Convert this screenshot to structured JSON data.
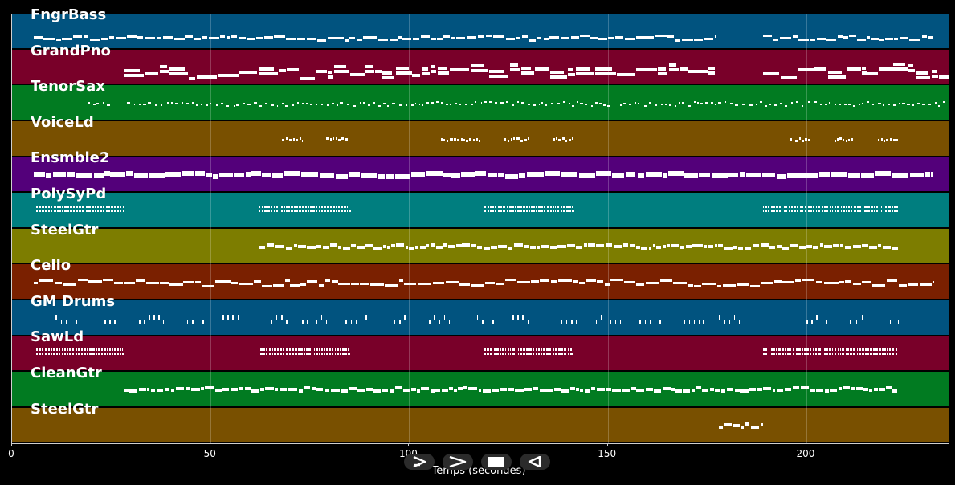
{
  "colors": {
    "background": "#000000",
    "note": "#ffffff",
    "grid": "#ffffff"
  },
  "axis": {
    "xlabel": "Temps (secondes)",
    "xmin": 0,
    "xmax": 236,
    "ticks": [
      {
        "value": 0,
        "label": "0"
      },
      {
        "value": 50,
        "label": "50"
      },
      {
        "value": 100,
        "label": "100"
      },
      {
        "value": 150,
        "label": "150"
      },
      {
        "value": 200,
        "label": "200"
      }
    ]
  },
  "controls": [
    {
      "name": "play-alt-button",
      "icon": "play-outline-icon"
    },
    {
      "name": "forward-button",
      "icon": "chevron-right-icon"
    },
    {
      "name": "stop-button",
      "icon": "stop-icon"
    },
    {
      "name": "rewind-button",
      "icon": "play-reverse-icon"
    }
  ],
  "tracks": [
    {
      "label": "FngrBass",
      "color": "#01537f",
      "style": "bass",
      "segments": [
        [
          5.5,
          177
        ],
        [
          189,
          232
        ]
      ]
    },
    {
      "label": "GrandPno",
      "color": "#790029",
      "style": "piano",
      "segments": [
        [
          28,
          177
        ],
        [
          189,
          236
        ]
      ]
    },
    {
      "label": "TenorSax",
      "color": "#017b21",
      "style": "dots",
      "segments": [
        [
          19,
          25
        ],
        [
          29,
          151
        ],
        [
          153,
          236
        ]
      ]
    },
    {
      "label": "VoiceLd",
      "color": "#795000",
      "style": "phrases",
      "segments": [
        [
          68,
          73
        ],
        [
          79,
          85
        ],
        [
          108,
          118
        ],
        [
          124,
          130
        ],
        [
          136,
          141
        ],
        [
          196,
          201
        ],
        [
          207,
          212
        ],
        [
          218,
          223
        ]
      ]
    },
    {
      "label": "Ensmble2",
      "color": "#53007a",
      "style": "thick",
      "segments": [
        [
          5.5,
          232
        ]
      ]
    },
    {
      "label": "PolySyPd",
      "color": "#007e7f",
      "style": "pads",
      "segments": [
        [
          6,
          28
        ],
        [
          62,
          85
        ],
        [
          119,
          141
        ],
        [
          189,
          223
        ]
      ]
    },
    {
      "label": "SteelGtr",
      "color": "#7d7d00",
      "style": "strum",
      "segments": [
        [
          62,
          223
        ]
      ]
    },
    {
      "label": "Cello",
      "color": "#7a2000",
      "style": "cello",
      "segments": [
        [
          5.5,
          232
        ]
      ]
    },
    {
      "label": "GM Drums",
      "color": "#01537f",
      "style": "drums",
      "segments": [
        [
          11,
          16
        ],
        [
          22,
          27
        ],
        [
          32,
          38
        ],
        [
          44,
          48
        ],
        [
          53,
          58
        ],
        [
          64,
          69
        ],
        [
          73,
          79
        ],
        [
          84,
          89
        ],
        [
          95,
          100
        ],
        [
          105,
          110
        ],
        [
          117,
          121
        ],
        [
          126,
          131
        ],
        [
          137,
          142
        ],
        [
          147,
          153
        ],
        [
          158,
          163
        ],
        [
          168,
          174
        ],
        [
          178,
          183
        ],
        [
          200,
          205
        ],
        [
          211,
          214
        ],
        [
          221,
          223
        ]
      ]
    },
    {
      "label": "SawLd",
      "color": "#790029",
      "style": "pads",
      "segments": [
        [
          6,
          28
        ],
        [
          62,
          85
        ],
        [
          119,
          141
        ],
        [
          189,
          223
        ]
      ]
    },
    {
      "label": "CleanGtr",
      "color": "#017b21",
      "style": "strum",
      "segments": [
        [
          28,
          223
        ]
      ]
    },
    {
      "label": "SteelGtr",
      "color": "#795000",
      "style": "strum",
      "segments": [
        [
          178,
          189
        ]
      ]
    }
  ]
}
